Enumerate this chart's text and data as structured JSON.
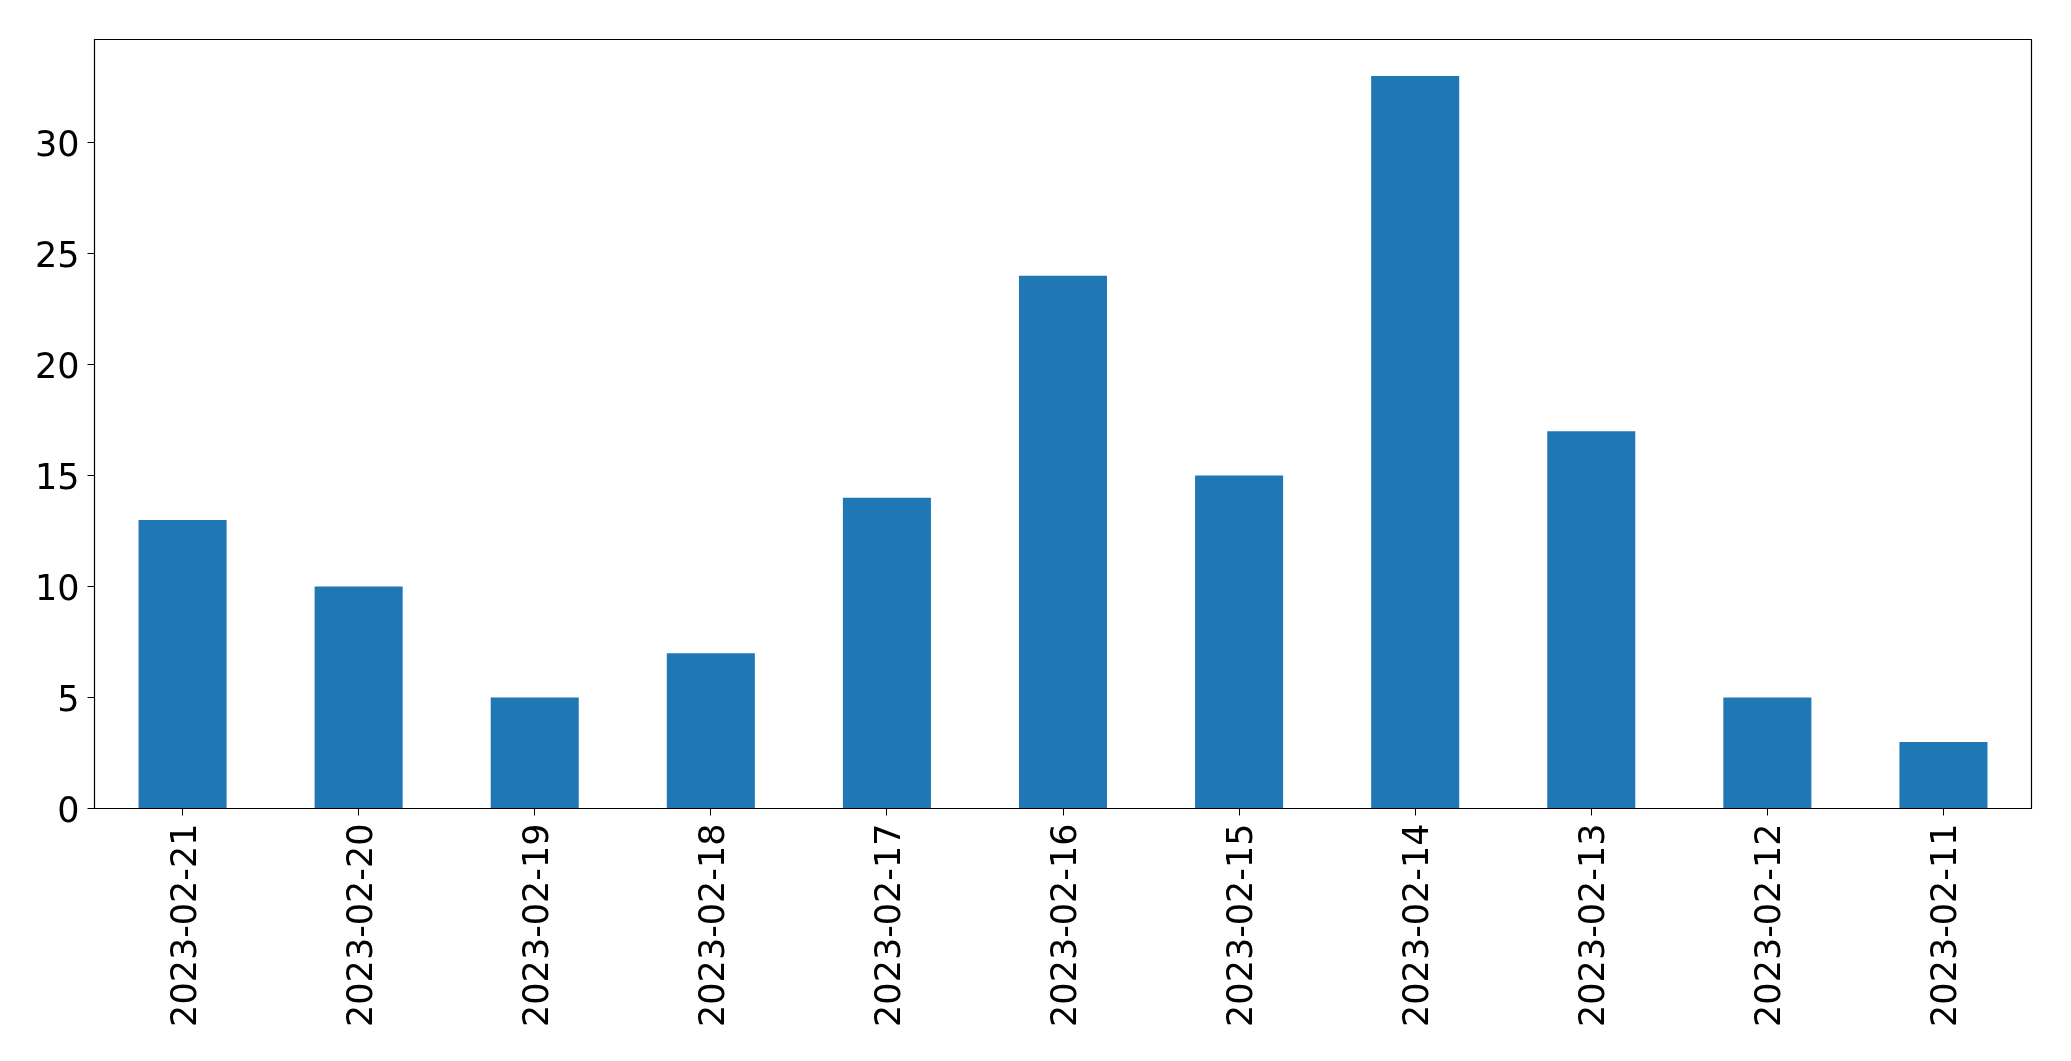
{
  "chart_data": {
    "type": "bar",
    "categories": [
      "2023-02-21",
      "2023-02-20",
      "2023-02-19",
      "2023-02-18",
      "2023-02-17",
      "2023-02-16",
      "2023-02-15",
      "2023-02-14",
      "2023-02-13",
      "2023-02-12",
      "2023-02-11"
    ],
    "values": [
      13,
      10,
      5,
      7,
      14,
      24,
      15,
      33,
      17,
      5,
      3
    ],
    "color": "#1f77b4",
    "ylim": [
      0,
      34.65
    ],
    "yticks": [
      0,
      5,
      10,
      15,
      20,
      25,
      30
    ]
  }
}
